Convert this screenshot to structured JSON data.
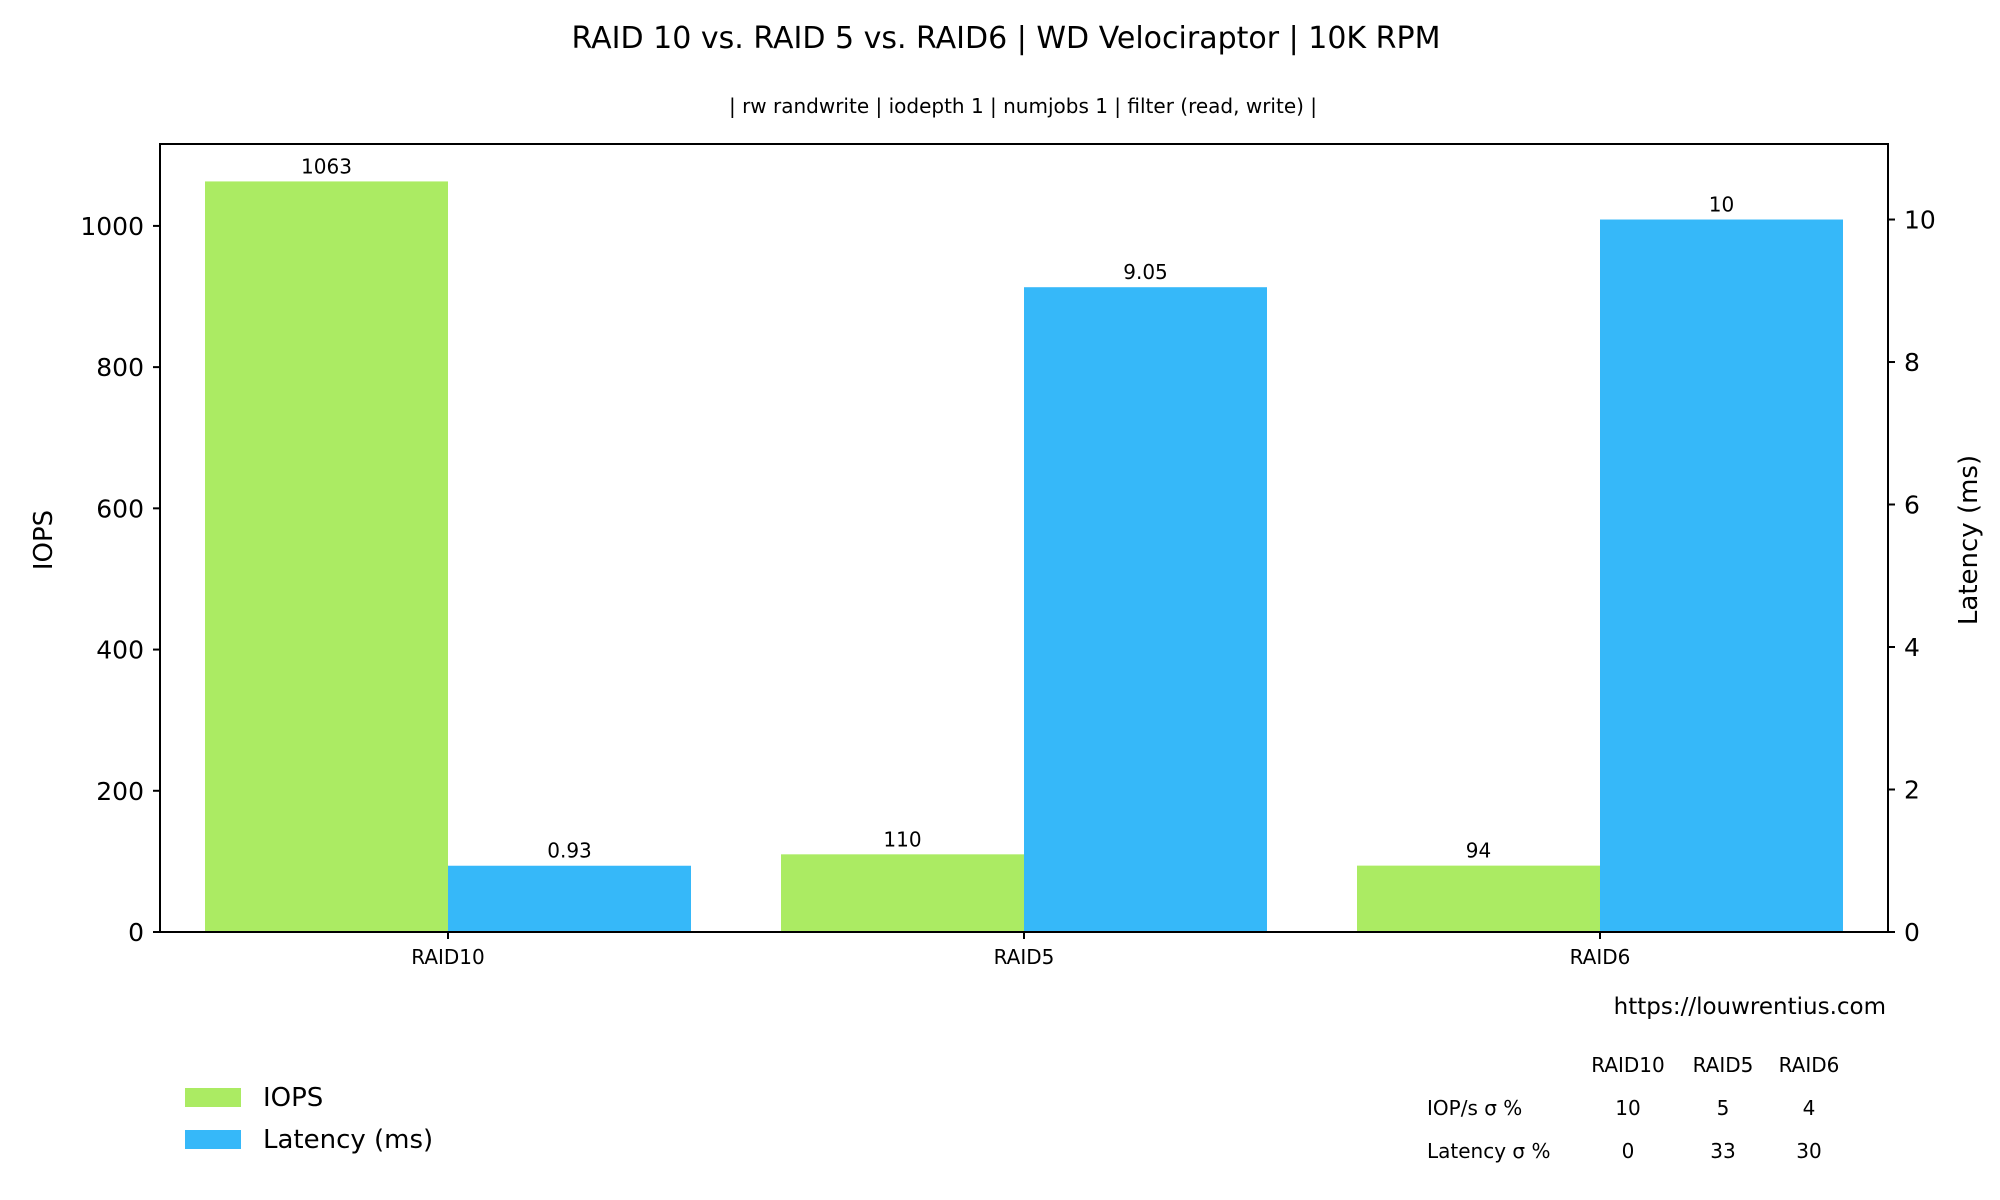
{
  "chart_data": {
    "type": "bar",
    "title": "RAID 10 vs. RAID 5 vs. RAID6 | WD Velociraptor | 10K RPM",
    "subtitle": "| rw randwrite | iodepth 1 | numjobs 1 | filter (read, write) |",
    "categories": [
      "RAID10",
      "RAID5",
      "RAID6"
    ],
    "series": [
      {
        "name": "IOPS",
        "axis": "left",
        "color": "#abeb63",
        "values": [
          1063,
          110,
          94
        ],
        "labels": [
          "1063",
          "110",
          "94"
        ]
      },
      {
        "name": "Latency (ms)",
        "axis": "right",
        "color": "#36b8f9",
        "values": [
          0.93,
          9.05,
          10
        ],
        "labels": [
          "0.93",
          "9.05",
          "10"
        ]
      }
    ],
    "ylabel": "IOPS",
    "y2label": "Latency (ms)",
    "ylim": [
      0,
      1116
    ],
    "y2lim": [
      0,
      11.06
    ],
    "yticks": [
      0,
      200,
      400,
      600,
      800,
      1000
    ],
    "y2ticks": [
      0,
      2,
      4,
      6,
      8,
      10
    ],
    "legend_position": "bottom-left",
    "grid": false,
    "source": "https://louwrentius.com",
    "stats_table": {
      "columns": [
        "RAID10",
        "RAID5",
        "RAID6"
      ],
      "rows": [
        {
          "label": "IOP/s σ %",
          "values": [
            "10",
            "5",
            "4"
          ]
        },
        {
          "label": "Latency σ %",
          "values": [
            "0",
            "33",
            "30"
          ]
        }
      ]
    }
  }
}
